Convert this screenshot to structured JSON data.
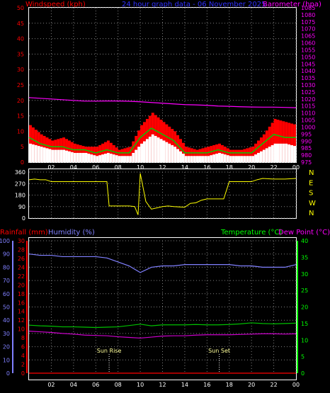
{
  "header": {
    "left_label": "Windspeed (kph)",
    "center_label": "24 hour graph data - 06 November 2025",
    "right_label": "Barometer (hpa)"
  },
  "colors": {
    "wind_red": "#ff0000",
    "wind_green": "#00cc00",
    "wind_white": "#ffffff",
    "barometer": "#ff00ff",
    "direction": "#ffff00",
    "humidity": "#8080ff",
    "temperature": "#00c000",
    "dewpoint": "#cc00cc",
    "rain": "#ff0000",
    "axis_left": "#ff0000",
    "axis_right": "#ff00ff",
    "temp_axis": "#00ff00",
    "hum_axis": "#8080ff",
    "grid": "#808080"
  },
  "chart_data": [
    {
      "type": "area",
      "title": "24 hour graph data - 06 November 2025",
      "ylabel": "Windspeed (kph)",
      "y2label": "Barometer (hpa)",
      "ylim": [
        0,
        50
      ],
      "y2lim": [
        975,
        1085
      ],
      "yticks": [
        "0",
        "5",
        "10",
        "15",
        "20",
        "25",
        "30",
        "35",
        "40",
        "45",
        "50"
      ],
      "y2ticks": [
        "975",
        "980",
        "985",
        "990",
        "995",
        "1000",
        "1005",
        "1010",
        "1015",
        "1020",
        "1025",
        "1030",
        "1035",
        "1040",
        "1045",
        "1050",
        "1055",
        "1060",
        "1065",
        "1070",
        "1075",
        "1080",
        "1085"
      ],
      "xticks": [
        "02",
        "04",
        "06",
        "08",
        "10",
        "12",
        "14",
        "16",
        "18",
        "20",
        "22",
        "00"
      ],
      "grid": true,
      "x_hours": [
        0,
        1,
        2,
        3,
        4,
        5,
        6,
        7,
        8,
        9,
        10,
        11,
        12,
        13,
        14,
        15,
        16,
        17,
        18,
        19,
        20,
        21,
        22,
        23,
        24
      ],
      "series": [
        {
          "name": "Windspeed (kph)",
          "kind": "gust",
          "values": [
            12,
            9,
            7,
            8,
            6,
            5,
            5,
            7,
            4,
            5,
            12,
            16,
            13,
            10,
            5,
            4,
            5,
            6,
            4,
            4,
            5,
            9,
            14,
            13,
            12
          ]
        },
        {
          "name": "Windspeed (kph)",
          "kind": "average",
          "values": [
            8,
            6,
            5,
            5,
            4,
            4,
            3,
            4,
            3,
            3,
            8,
            11,
            9,
            7,
            3,
            3,
            3,
            4,
            3,
            3,
            3,
            6,
            9,
            8,
            8
          ]
        },
        {
          "name": "Windspeed (kph)",
          "kind": "speed",
          "values": [
            6,
            5,
            4,
            4,
            3,
            3,
            2,
            3,
            2,
            2,
            6,
            9,
            7,
            5,
            2,
            2,
            2,
            3,
            2,
            2,
            2,
            4,
            6,
            6,
            5
          ]
        },
        {
          "name": "Barometer (hpa)",
          "values": [
            1021,
            1020.5,
            1020,
            1019.5,
            1019,
            1018.5,
            1018.5,
            1018.6,
            1018.6,
            1018.4,
            1018,
            1017.5,
            1017,
            1016.5,
            1016,
            1015.8,
            1015.5,
            1015,
            1014.8,
            1014.5,
            1014.3,
            1014.2,
            1014.2,
            1014,
            1013.8
          ]
        }
      ]
    },
    {
      "type": "line",
      "ylabel": "Wind direction",
      "ylim": [
        0,
        360
      ],
      "yticks": [
        "0",
        "90",
        "180",
        "270",
        "360"
      ],
      "y2ticks": [
        "N",
        "W",
        "S",
        "E",
        "N"
      ],
      "xticks": [
        "02",
        "04",
        "06",
        "08",
        "10",
        "12",
        "14",
        "16",
        "18",
        "20",
        "22",
        "00"
      ],
      "grid": true,
      "series": [
        {
          "name": "Wind direction",
          "x": [
            0,
            0.5,
            1,
            1.5,
            2,
            3,
            4,
            5,
            6,
            7,
            7.2,
            7.5,
            8,
            9,
            9.5,
            9.8,
            10,
            10.5,
            11,
            12,
            12.5,
            13,
            14,
            14.5,
            15,
            15.5,
            16,
            16.5,
            17,
            17.5,
            18,
            19,
            20,
            20.5,
            21,
            22,
            23,
            24
          ],
          "values": [
            300,
            305,
            300,
            300,
            285,
            285,
            285,
            285,
            285,
            285,
            95,
            95,
            95,
            95,
            90,
            25,
            350,
            130,
            70,
            90,
            95,
            90,
            85,
            115,
            120,
            140,
            150,
            150,
            150,
            150,
            285,
            285,
            285,
            300,
            310,
            305,
            305,
            310
          ]
        }
      ]
    },
    {
      "type": "line",
      "ylabel": "Humidity (%)",
      "y2label": "Temperature (°C) / Dew Point (°C)",
      "y3label": "Rainfall (mm)",
      "ylim": [
        0,
        100
      ],
      "y2lim": [
        0,
        40
      ],
      "y3lim": [
        0,
        30
      ],
      "yticks": [
        "0",
        "10",
        "20",
        "30",
        "40",
        "50",
        "60",
        "70",
        "80",
        "90",
        "100"
      ],
      "y2ticks": [
        "0",
        "5",
        "10",
        "15",
        "20",
        "25",
        "30",
        "35",
        "40"
      ],
      "y3ticks": [
        "0",
        "2",
        "4",
        "6",
        "8",
        "10",
        "12",
        "14",
        "16",
        "18",
        "20",
        "22",
        "24",
        "26",
        "28",
        "30"
      ],
      "xticks": [
        "02",
        "04",
        "06",
        "08",
        "10",
        "12",
        "14",
        "16",
        "18",
        "20",
        "22",
        "00"
      ],
      "grid": true,
      "annotations": [
        "Sun Rise",
        "Sun Set"
      ],
      "annotation_hours": [
        7.2,
        17.1
      ],
      "x_hours": [
        0,
        1,
        2,
        3,
        4,
        5,
        6,
        7,
        8,
        9,
        10,
        11,
        12,
        13,
        14,
        15,
        16,
        17,
        18,
        19,
        20,
        21,
        22,
        23,
        24
      ],
      "series": [
        {
          "name": "Humidity (%)",
          "values": [
            90,
            89,
            89,
            88,
            88,
            88,
            88,
            87,
            84,
            81,
            76,
            80,
            81,
            81,
            82,
            82,
            82,
            82,
            82,
            81,
            81,
            80,
            80,
            80,
            82
          ]
        },
        {
          "name": "Temperature (°C)",
          "values": [
            14.5,
            14.3,
            14.2,
            14,
            14,
            13.9,
            13.8,
            13.9,
            14,
            14.4,
            14.8,
            14.3,
            14.6,
            14.6,
            14.6,
            14.7,
            14.6,
            14.6,
            14.7,
            14.9,
            15.2,
            15,
            14.9,
            15,
            15.1
          ]
        },
        {
          "name": "Dew Point (°C)",
          "values": [
            12.7,
            12.5,
            12.3,
            12,
            11.8,
            11.5,
            11.4,
            11.3,
            11.0,
            10.8,
            10.6,
            10.9,
            11.2,
            11.3,
            11.3,
            11.5,
            11.6,
            11.6,
            11.6,
            11.7,
            11.8,
            11.9,
            11.9,
            11.8,
            11.9
          ]
        },
        {
          "name": "Rainfall (mm)",
          "values": [
            0,
            0,
            0,
            0,
            0,
            0,
            0,
            0,
            0,
            0,
            0,
            0,
            0,
            0,
            0,
            0,
            0,
            0,
            0,
            0,
            0,
            0,
            0,
            0,
            0
          ]
        }
      ]
    }
  ]
}
